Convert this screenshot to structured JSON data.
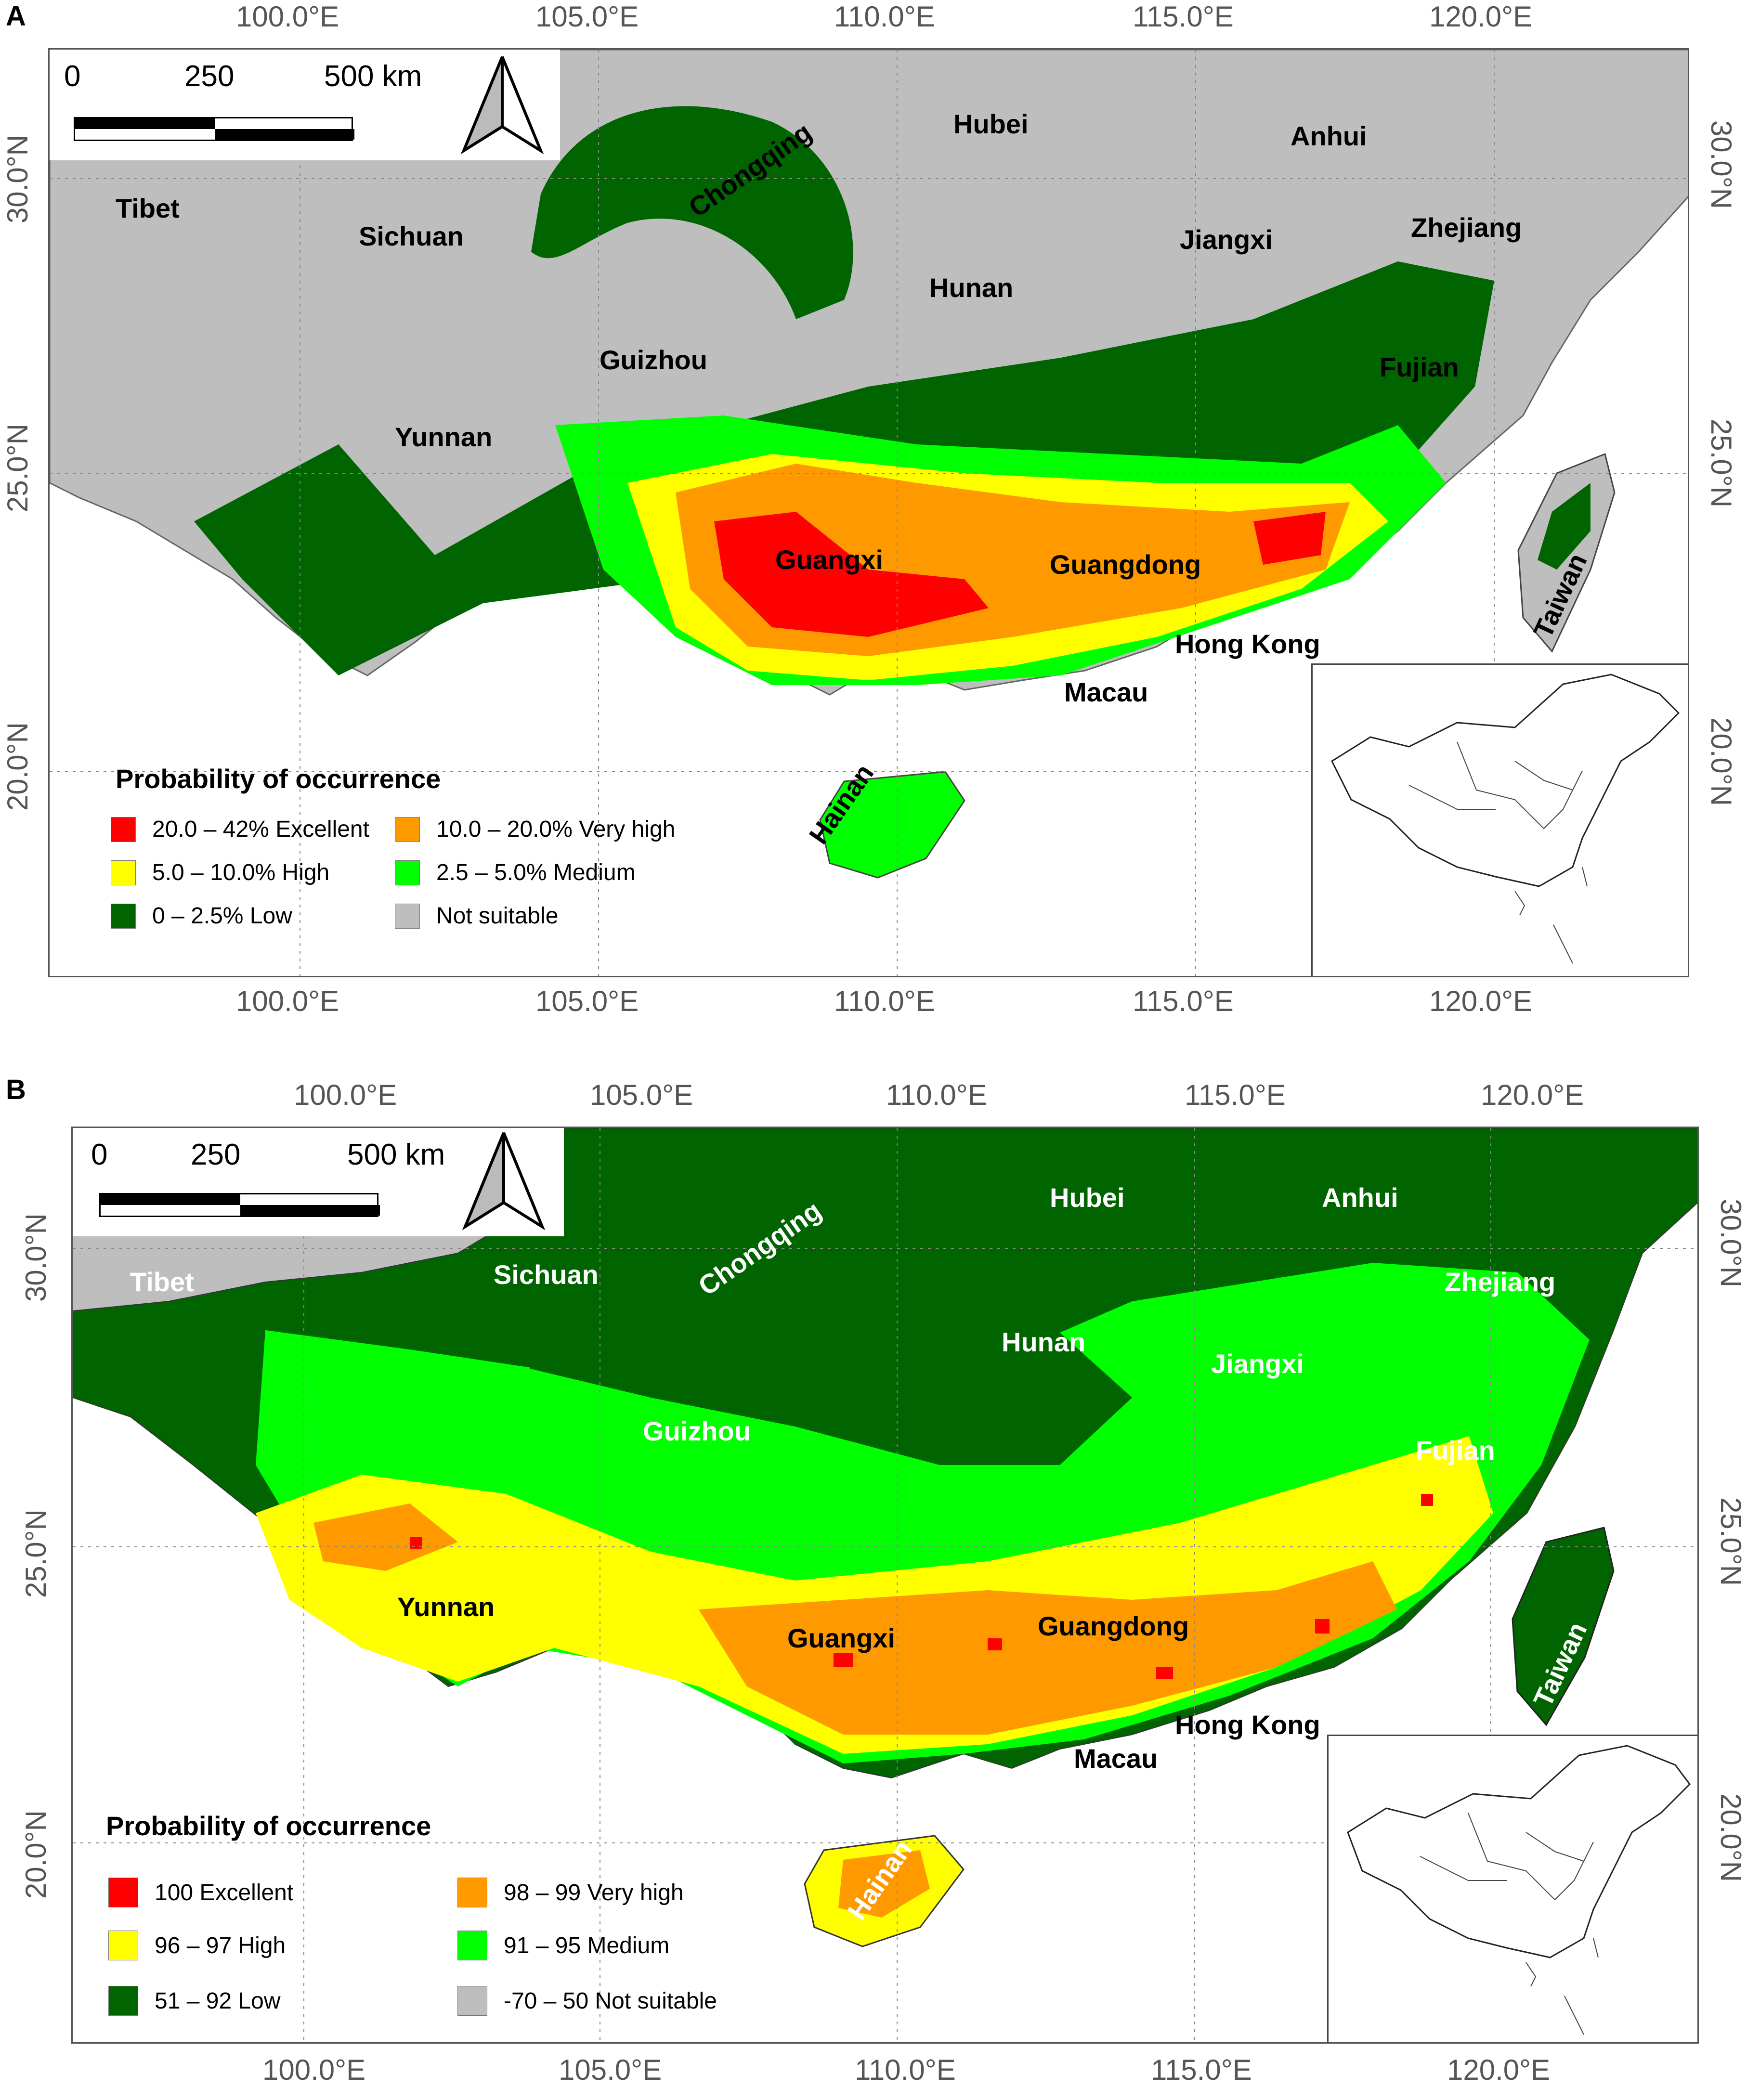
{
  "colors": {
    "excellent": "#ff0000",
    "very_high": "#ff9900",
    "high": "#ffff00",
    "medium": "#00ff00",
    "low": "#006400",
    "not_suitable": "#bebebe",
    "sea": "#ffffff"
  },
  "panels": [
    {
      "letter": "A",
      "lon_ticks": [
        "100.0°E",
        "105.0°E",
        "110.0°E",
        "115.0°E",
        "120.0°E"
      ],
      "lat_ticks": [
        "30.0°N",
        "25.0°N",
        "20.0°N"
      ],
      "scale_labels": [
        "0",
        "250",
        "500 km"
      ],
      "north_arrow": "north-arrow-icon",
      "places": {
        "tibet": "Tibet",
        "sichuan": "Sichuan",
        "chongqing": "Chongqing",
        "hubei": "Hubei",
        "anhui": "Anhui",
        "zhejiang": "Zhejiang",
        "jiangxi": "Jiangxi",
        "hunan": "Hunan",
        "guizhou": "Guizhou",
        "fujian": "Fujian",
        "yunnan": "Yunnan",
        "guangxi": "Guangxi",
        "guangdong": "Guangdong",
        "hongkong": "Hong Kong",
        "macau": "Macau",
        "hainan": "Hainan",
        "taiwan": "Taiwan"
      },
      "legend": {
        "title": "Probability of occurrence",
        "items": [
          {
            "label": "20.0 – 42% Excellent",
            "color": "#ff0000"
          },
          {
            "label": "10.0 – 20.0% Very high",
            "color": "#ff9900"
          },
          {
            "label": "5.0 – 10.0% High",
            "color": "#ffff00"
          },
          {
            "label": "2.5 – 5.0% Medium",
            "color": "#00ff00"
          },
          {
            "label": "0 – 2.5% Low",
            "color": "#006400"
          },
          {
            "label": "Not suitable",
            "color": "#bebebe"
          }
        ]
      }
    },
    {
      "letter": "B",
      "lon_ticks": [
        "100.0°E",
        "105.0°E",
        "110.0°E",
        "115.0°E",
        "120.0°E"
      ],
      "lat_ticks": [
        "30.0°N",
        "25.0°N",
        "20.0°N"
      ],
      "scale_labels": [
        "0",
        "250",
        "500 km"
      ],
      "north_arrow": "north-arrow-icon",
      "places": {
        "tibet": "Tibet",
        "sichuan": "Sichuan",
        "chongqing": "Chongqing",
        "hubei": "Hubei",
        "anhui": "Anhui",
        "zhejiang": "Zhejiang",
        "jiangxi": "Jiangxi",
        "hunan": "Hunan",
        "guizhou": "Guizhou",
        "fujian": "Fujian",
        "yunnan": "Yunnan",
        "guangxi": "Guangxi",
        "guangdong": "Guangdong",
        "hongkong": "Hong Kong",
        "macau": "Macau",
        "hainan": "Hainan",
        "taiwan": "Taiwan"
      },
      "legend": {
        "title": "Probability of occurrence",
        "items": [
          {
            "label": "100 Excellent",
            "color": "#ff0000"
          },
          {
            "label": "98 – 99 Very high",
            "color": "#ff9900"
          },
          {
            "label": "96 – 97 High",
            "color": "#ffff00"
          },
          {
            "label": "91 – 95 Medium",
            "color": "#00ff00"
          },
          {
            "label": "51 – 92 Low",
            "color": "#006400"
          },
          {
            "label": "-70 – 50 Not suitable",
            "color": "#bebebe"
          }
        ]
      }
    }
  ]
}
